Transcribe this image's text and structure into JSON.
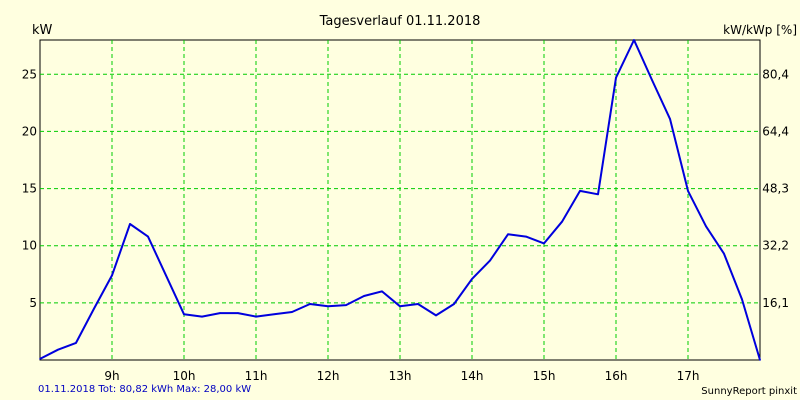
{
  "chart_data": {
    "type": "line",
    "title": "Tagesverlauf 01.11.2018",
    "left_unit": "kW",
    "right_unit": "kW/kWp [%]",
    "x_ticks": [
      "9h",
      "10h",
      "11h",
      "12h",
      "13h",
      "14h",
      "15h",
      "16h",
      "17h"
    ],
    "y_ticks": [
      "5",
      "10",
      "15",
      "20",
      "25"
    ],
    "y2_ticks": [
      "16,1",
      "32,2",
      "48,3",
      "64,4",
      "80,4"
    ],
    "ylim": [
      0,
      28
    ],
    "grid": true,
    "line_color": "#0000dd",
    "grid_color": "#00cc00",
    "background": "#ffffe0",
    "series": [
      {
        "x": [
          "08:00",
          "08:15",
          "08:30",
          "08:45",
          "09:00",
          "09:15",
          "09:30",
          "09:45",
          "10:00",
          "10:15",
          "10:30",
          "10:45",
          "11:00",
          "11:15",
          "11:30",
          "11:45",
          "12:00",
          "12:15",
          "12:30",
          "12:45",
          "13:00",
          "13:15",
          "13:30",
          "13:45",
          "14:00",
          "14:15",
          "14:30",
          "14:45",
          "15:00",
          "15:15",
          "15:30",
          "15:45",
          "16:00",
          "16:15",
          "16:30",
          "16:45",
          "17:00",
          "17:15",
          "17:30",
          "17:45",
          "18:00"
        ],
        "values": [
          0.1,
          0.9,
          1.5,
          4.5,
          7.4,
          11.9,
          10.8,
          7.4,
          4.0,
          3.8,
          4.1,
          4.1,
          3.8,
          4.0,
          4.2,
          4.9,
          4.7,
          4.8,
          5.6,
          6.0,
          4.7,
          4.9,
          3.9,
          4.9,
          7.1,
          8.7,
          11.0,
          10.8,
          10.2,
          12.1,
          14.8,
          14.5,
          24.7,
          28.0,
          24.5,
          21.1,
          14.8,
          11.7,
          9.3,
          5.3,
          0.0
        ]
      }
    ]
  },
  "footer": {
    "summary": "01.11.2018 Tot: 80,82 kWh Max: 28,00 kW",
    "brand": "SunnyReport pinxit"
  }
}
